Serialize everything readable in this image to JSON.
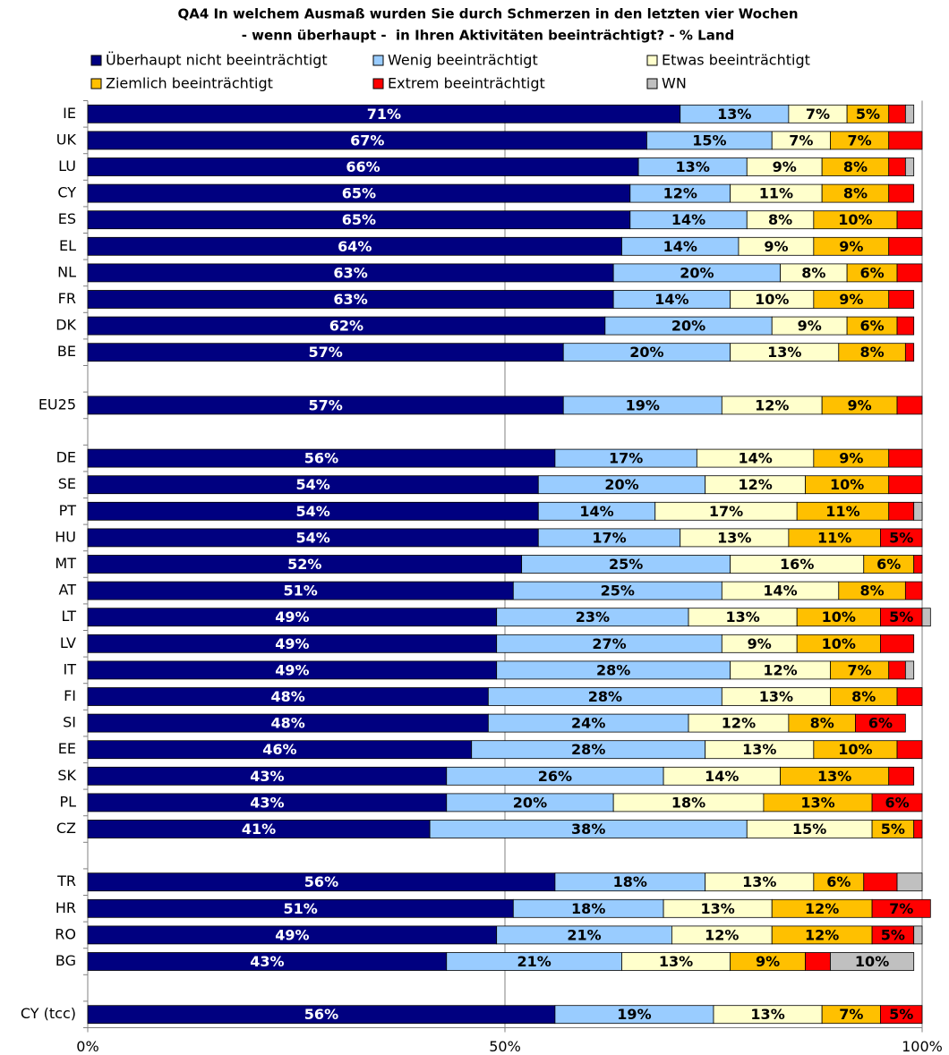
{
  "chart_data": {
    "type": "stacked-bar-horizontal",
    "title": [
      "QA4 In welchem Ausmaß wurden Sie durch Schmerzen in den letzten vier Wochen",
      "- wenn überhaupt -  in Ihren Aktivitäten beeinträchtigt? - % Land"
    ],
    "categories": [
      "IE",
      "UK",
      "LU",
      "CY",
      "ES",
      "EL",
      "NL",
      "FR",
      "DK",
      "BE",
      null,
      "EU25",
      null,
      "DE",
      "SE",
      "PT",
      "HU",
      "MT",
      "AT",
      "LT",
      "LV",
      "IT",
      "FI",
      "SI",
      "EE",
      "SK",
      "PL",
      "CZ",
      null,
      "TR",
      "HR",
      "RO",
      "BG",
      null,
      "CY (tcc)"
    ],
    "series": [
      {
        "name": "Überhaupt nicht beeinträchtigt",
        "color": "#000080",
        "values": [
          71,
          67,
          66,
          65,
          65,
          64,
          63,
          63,
          62,
          57,
          null,
          57,
          null,
          56,
          54,
          54,
          54,
          52,
          51,
          49,
          49,
          49,
          48,
          48,
          46,
          43,
          43,
          41,
          null,
          56,
          51,
          49,
          43,
          null,
          56
        ],
        "value_labels": [
          "71%",
          "67%",
          "66%",
          "65%",
          "65%",
          "64%",
          "63%",
          "63%",
          "62%",
          "57%",
          null,
          "57%",
          null,
          "56%",
          "54%",
          "54%",
          "54%",
          "52%",
          "51%",
          "49%",
          "49%",
          "49%",
          "48%",
          "48%",
          "46%",
          "43%",
          "43%",
          "41%",
          null,
          "56%",
          "51%",
          "49%",
          "43%",
          null,
          "56%"
        ]
      },
      {
        "name": "Wenig beeinträchtigt",
        "color": "#99ccff",
        "values": [
          13,
          15,
          13,
          12,
          14,
          14,
          20,
          14,
          20,
          20,
          null,
          19,
          null,
          17,
          20,
          14,
          17,
          25,
          25,
          23,
          27,
          28,
          28,
          24,
          28,
          26,
          20,
          38,
          null,
          18,
          18,
          21,
          21,
          null,
          19
        ],
        "value_labels": [
          "13%",
          "15%",
          "13%",
          "12%",
          "14%",
          "14%",
          "20%",
          "14%",
          "20%",
          "20%",
          null,
          "19%",
          null,
          "17%",
          "20%",
          "14%",
          "17%",
          "25%",
          "25%",
          "23%",
          "27%",
          "28%",
          "28%",
          "24%",
          "28%",
          "26%",
          "20%",
          "38%",
          null,
          "18%",
          "18%",
          "21%",
          "21%",
          null,
          "19%"
        ]
      },
      {
        "name": "Etwas beeinträchtigt",
        "color": "#ffffcc",
        "values": [
          7,
          7,
          9,
          11,
          8,
          9,
          8,
          10,
          9,
          13,
          null,
          12,
          null,
          14,
          12,
          17,
          13,
          16,
          14,
          13,
          9,
          12,
          13,
          12,
          13,
          14,
          18,
          15,
          null,
          13,
          13,
          12,
          13,
          null,
          13
        ],
        "value_labels": [
          "7%",
          "7%",
          "9%",
          "11%",
          "8%",
          "9%",
          "8%",
          "10%",
          "9%",
          "13%",
          null,
          "12%",
          null,
          "14%",
          "12%",
          "17%",
          "13%",
          "16%",
          "14%",
          "13%",
          "9%",
          "12%",
          "13%",
          "12%",
          "13%",
          "14%",
          "18%",
          "15%",
          null,
          "13%",
          "13%",
          "12%",
          "13%",
          null,
          "13%"
        ]
      },
      {
        "name": "Ziemlich beeinträchtigt",
        "color": "#ffc000",
        "values": [
          5,
          7,
          8,
          8,
          10,
          9,
          6,
          9,
          6,
          8,
          null,
          9,
          null,
          9,
          10,
          11,
          11,
          6,
          8,
          10,
          10,
          7,
          8,
          8,
          10,
          13,
          13,
          5,
          null,
          6,
          12,
          12,
          9,
          null,
          7
        ],
        "value_labels": [
          "5%",
          "7%",
          "8%",
          "8%",
          "10%",
          "9%",
          "6%",
          "9%",
          "6%",
          "8%",
          null,
          "9%",
          null,
          "9%",
          "10%",
          "11%",
          "11%",
          "6%",
          "8%",
          "10%",
          "10%",
          "7%",
          "8%",
          "8%",
          "10%",
          "13%",
          "13%",
          "5%",
          null,
          "6%",
          "12%",
          "12%",
          "9%",
          null,
          "7%"
        ]
      },
      {
        "name": "Extrem beeinträchtigt",
        "color": "#ff0000",
        "values": [
          2,
          4,
          2,
          3,
          3,
          4,
          3,
          3,
          2,
          1,
          null,
          3,
          null,
          4,
          4,
          3,
          5,
          1,
          2,
          5,
          4,
          2,
          3,
          6,
          3,
          3,
          6,
          1,
          null,
          4,
          7,
          5,
          3,
          null,
          5
        ],
        "value_labels": [
          null,
          null,
          null,
          null,
          null,
          null,
          null,
          null,
          null,
          null,
          null,
          null,
          null,
          null,
          null,
          null,
          "5%",
          null,
          null,
          "5%",
          null,
          null,
          null,
          "6%",
          null,
          null,
          "6%",
          null,
          null,
          null,
          "7%",
          "5%",
          null,
          null,
          "5%"
        ]
      },
      {
        "name": "WN",
        "color": "#c0c0c0",
        "values": [
          1,
          0,
          1,
          0,
          0,
          0,
          0,
          0,
          0,
          0,
          null,
          0,
          null,
          0,
          0,
          1,
          0,
          0,
          0,
          1,
          0,
          1,
          0,
          0,
          0,
          0,
          0,
          0,
          null,
          3,
          0,
          1,
          10,
          null,
          0
        ],
        "value_labels": [
          null,
          null,
          null,
          null,
          null,
          null,
          null,
          null,
          null,
          null,
          null,
          null,
          null,
          null,
          null,
          null,
          null,
          null,
          null,
          null,
          null,
          null,
          null,
          null,
          null,
          null,
          null,
          null,
          null,
          null,
          null,
          null,
          "10%",
          null,
          null
        ]
      }
    ],
    "xlim": [
      0,
      100
    ],
    "xticks": [
      {
        "value": 0,
        "label": "0%"
      },
      {
        "value": 50,
        "label": "50%"
      },
      {
        "value": 100,
        "label": "100%"
      }
    ],
    "grid": true
  }
}
